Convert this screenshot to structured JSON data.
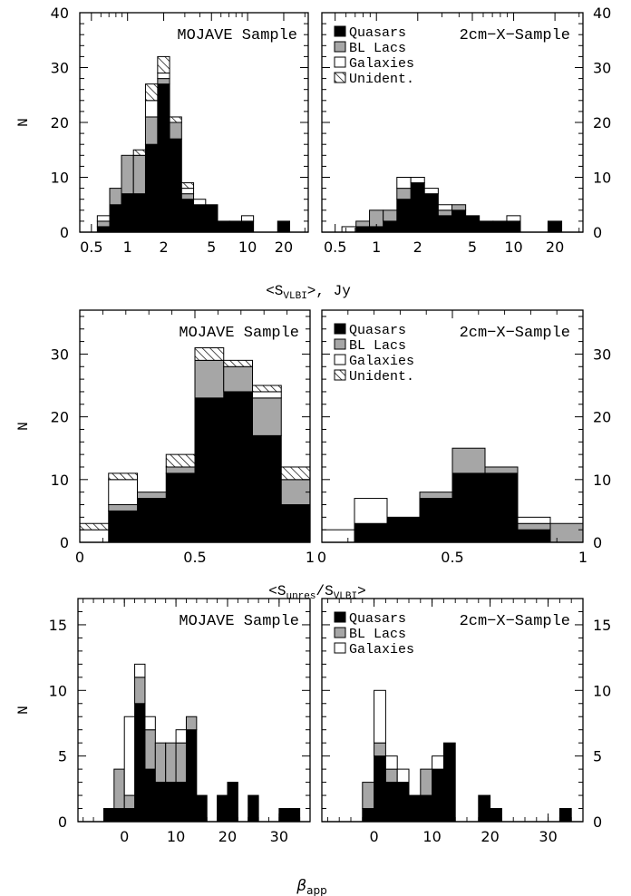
{
  "labels": {
    "left_title": "MOJAVE Sample",
    "right_title": "2cm−X−Sample",
    "ylabel": "N",
    "legend": [
      "Quasars",
      "BL Lacs",
      "Galaxies",
      "Unident."
    ],
    "xlabel_row1": "<S_VLBI>, Jy",
    "xlabel_row2": "<S_unres/S_VLBI>",
    "xlabel_row3": "β_app"
  },
  "colors": {
    "quasars": "#000000",
    "bl_lacs": "#a6a6a6",
    "galaxies": "#ffffff",
    "unident": "hatched"
  },
  "chart_data": [
    {
      "type": "bar",
      "stacked": true,
      "title": "MOJAVE Sample",
      "xlabel": "<S_VLBI>, Jy",
      "ylabel": "N",
      "xscale": "log",
      "xlim": [
        0.4,
        32
      ],
      "ylim": [
        0,
        40
      ],
      "xticks": [
        "0.5",
        "1",
        "2",
        "5",
        "10",
        "20"
      ],
      "yticks": [
        "0",
        "10",
        "20",
        "30",
        "40"
      ],
      "legend": false,
      "bin_edges": [
        0.56,
        0.71,
        0.89,
        1.12,
        1.41,
        1.78,
        2.24,
        2.82,
        3.55,
        4.47,
        5.62,
        7.08,
        8.91,
        11.2,
        14.1,
        17.8,
        22.4
      ],
      "series": [
        {
          "name": "Quasars",
          "values": [
            1,
            5,
            7,
            7,
            16,
            27,
            17,
            6,
            5,
            5,
            2,
            2,
            2,
            0,
            0,
            2
          ]
        },
        {
          "name": "BL Lacs",
          "values": [
            1,
            3,
            7,
            7,
            5,
            1,
            3,
            1,
            0,
            0,
            0,
            0,
            0,
            0,
            0,
            0
          ]
        },
        {
          "name": "Galaxies",
          "values": [
            1,
            0,
            0,
            0,
            3,
            1,
            0,
            1,
            1,
            0,
            0,
            0,
            1,
            0,
            0,
            0
          ]
        },
        {
          "name": "Unident.",
          "values": [
            0,
            0,
            0,
            1,
            3,
            3,
            1,
            1,
            0,
            0,
            0,
            0,
            0,
            0,
            0,
            0
          ]
        }
      ]
    },
    {
      "type": "bar",
      "stacked": true,
      "title": "2cm−X−Sample",
      "xlabel": "<S_VLBI>, Jy",
      "xscale": "log",
      "xlim": [
        0.4,
        32
      ],
      "ylim": [
        0,
        40
      ],
      "xticks": [
        "0.5",
        "1",
        "2",
        "5",
        "10",
        "20"
      ],
      "yticks": [
        "0",
        "10",
        "20",
        "30",
        "40"
      ],
      "legend": "top-right",
      "bin_edges": [
        0.56,
        0.71,
        0.89,
        1.12,
        1.41,
        1.78,
        2.24,
        2.82,
        3.55,
        4.47,
        5.62,
        7.08,
        8.91,
        11.2,
        14.1,
        17.8,
        22.4
      ],
      "series": [
        {
          "name": "Quasars",
          "values": [
            0,
            1,
            1,
            2,
            6,
            9,
            7,
            3,
            4,
            3,
            2,
            2,
            2,
            0,
            0,
            2
          ]
        },
        {
          "name": "BL Lacs",
          "values": [
            0,
            1,
            3,
            2,
            2,
            0,
            0,
            1,
            1,
            0,
            0,
            0,
            0,
            0,
            0,
            0
          ]
        },
        {
          "name": "Galaxies",
          "values": [
            1,
            0,
            0,
            0,
            2,
            1,
            1,
            1,
            0,
            0,
            0,
            0,
            1,
            0,
            0,
            0
          ]
        },
        {
          "name": "Unident.",
          "values": [
            0,
            0,
            0,
            0,
            0,
            0,
            0,
            0,
            0,
            0,
            0,
            0,
            0,
            0,
            0,
            0
          ]
        }
      ]
    },
    {
      "type": "bar",
      "stacked": true,
      "title": "MOJAVE Sample",
      "xlabel": "<S_unres/S_VLBI>",
      "ylabel": "N",
      "xlim": [
        0,
        1
      ],
      "ylim": [
        0,
        37
      ],
      "xticks": [
        "0",
        "0.5",
        "1"
      ],
      "yticks": [
        "0",
        "10",
        "20",
        "30"
      ],
      "legend": false,
      "bin_edges": [
        0,
        0.125,
        0.25,
        0.375,
        0.5,
        0.625,
        0.75,
        0.875,
        1.0
      ],
      "series": [
        {
          "name": "Quasars",
          "values": [
            0,
            5,
            7,
            11,
            23,
            24,
            17,
            6
          ]
        },
        {
          "name": "BL Lacs",
          "values": [
            0,
            1,
            1,
            1,
            6,
            4,
            6,
            4
          ]
        },
        {
          "name": "Galaxies",
          "values": [
            2,
            4,
            0,
            0,
            0,
            0,
            1,
            0
          ]
        },
        {
          "name": "Unident.",
          "values": [
            1,
            1,
            0,
            2,
            2,
            1,
            1,
            2
          ]
        }
      ]
    },
    {
      "type": "bar",
      "stacked": true,
      "title": "2cm−X−Sample",
      "xlabel": "<S_unres/S_VLBI>",
      "xlim": [
        0,
        1
      ],
      "ylim": [
        0,
        37
      ],
      "xticks": [
        "0",
        "0.5",
        "1"
      ],
      "yticks": [
        "0",
        "10",
        "20",
        "30"
      ],
      "legend": "top-right",
      "bin_edges": [
        0,
        0.125,
        0.25,
        0.375,
        0.5,
        0.625,
        0.75,
        0.875,
        1.0
      ],
      "series": [
        {
          "name": "Quasars",
          "values": [
            0,
            3,
            4,
            7,
            11,
            11,
            2,
            0
          ]
        },
        {
          "name": "BL Lacs",
          "values": [
            0,
            0,
            0,
            1,
            4,
            1,
            1,
            3
          ]
        },
        {
          "name": "Galaxies",
          "values": [
            2,
            4,
            0,
            0,
            0,
            0,
            1,
            0
          ]
        },
        {
          "name": "Unident.",
          "values": [
            0,
            0,
            0,
            0,
            0,
            0,
            0,
            0
          ]
        }
      ]
    },
    {
      "type": "bar",
      "stacked": true,
      "title": "MOJAVE Sample",
      "xlabel": "β_app",
      "ylabel": "N",
      "xlim": [
        -9,
        36
      ],
      "ylim": [
        0,
        17
      ],
      "xticks": [
        "0",
        "10",
        "20",
        "30"
      ],
      "yticks": [
        "0",
        "5",
        "10",
        "15"
      ],
      "legend": false,
      "bin_edges": [
        -4,
        -2,
        0,
        2,
        4,
        6,
        8,
        10,
        12,
        14,
        16,
        18,
        20,
        22,
        24,
        26,
        28,
        30,
        32,
        34
      ],
      "series": [
        {
          "name": "Quasars",
          "values": [
            1,
            1,
            1,
            9,
            4,
            3,
            3,
            3,
            7,
            2,
            0,
            2,
            3,
            0,
            2,
            0,
            0,
            1,
            1
          ]
        },
        {
          "name": "BL Lacs",
          "values": [
            0,
            3,
            1,
            2,
            3,
            3,
            3,
            3,
            1,
            0,
            0,
            0,
            0,
            0,
            0,
            0,
            0,
            0,
            0
          ]
        },
        {
          "name": "Galaxies",
          "values": [
            0,
            0,
            6,
            1,
            1,
            0,
            0,
            1,
            0,
            0,
            0,
            0,
            0,
            0,
            0,
            0,
            0,
            0,
            0
          ]
        }
      ]
    },
    {
      "type": "bar",
      "stacked": true,
      "title": "2cm−X−Sample",
      "xlabel": "β_app",
      "xlim": [
        -9,
        36
      ],
      "ylim": [
        0,
        17
      ],
      "xticks": [
        "0",
        "10",
        "20",
        "30"
      ],
      "yticks": [
        "0",
        "5",
        "10",
        "15"
      ],
      "legend": "top-right",
      "bin_edges": [
        -4,
        -2,
        0,
        2,
        4,
        6,
        8,
        10,
        12,
        14,
        16,
        18,
        20,
        22,
        24,
        26,
        28,
        30,
        32,
        34
      ],
      "series": [
        {
          "name": "Quasars",
          "values": [
            0,
            1,
            5,
            3,
            3,
            2,
            2,
            4,
            6,
            0,
            0,
            2,
            1,
            0,
            0,
            0,
            0,
            0,
            1
          ]
        },
        {
          "name": "BL Lacs",
          "values": [
            0,
            2,
            1,
            1,
            0,
            0,
            2,
            0,
            0,
            0,
            0,
            0,
            0,
            0,
            0,
            0,
            0,
            0,
            0
          ]
        },
        {
          "name": "Galaxies",
          "values": [
            0,
            0,
            4,
            1,
            1,
            0,
            0,
            1,
            0,
            0,
            0,
            0,
            0,
            0,
            0,
            0,
            0,
            0,
            0
          ]
        }
      ]
    }
  ]
}
